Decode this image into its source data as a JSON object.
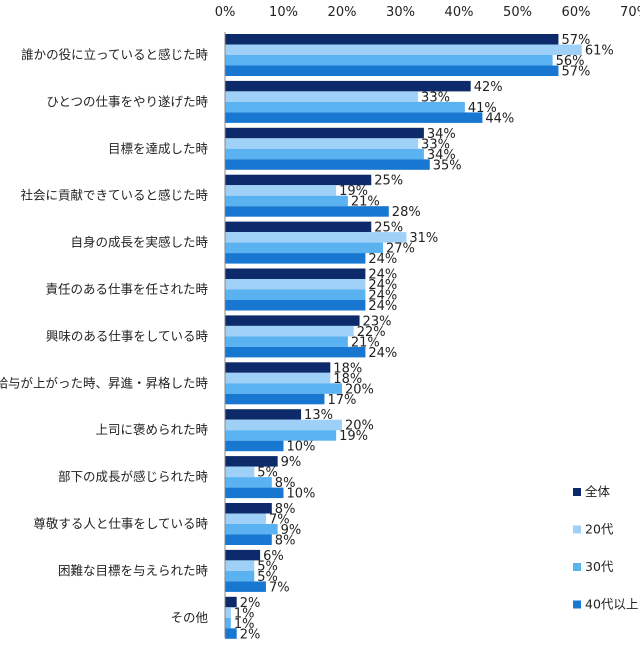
{
  "chart_data": {
    "type": "bar",
    "orientation": "horizontal",
    "title": "",
    "xlabel": "",
    "ylabel": "",
    "xlim": [
      0,
      70
    ],
    "x_ticks": [
      "0%",
      "10%",
      "20%",
      "30%",
      "40%",
      "50%",
      "60%",
      "70%"
    ],
    "value_suffix": "%",
    "grid": false,
    "legend_position": "bottom-right",
    "categories": [
      "誰かの役に立っていると感じた時",
      "ひとつの仕事をやり遂げた時",
      "目標を達成した時",
      "社会に貢献できていると感じた時",
      "自身の成長を実感した時",
      "責任のある仕事を任された時",
      "興味のある仕事をしている時",
      "給与が上がった時、昇進・昇格した時",
      "上司に褒められた時",
      "部下の成長が感じられた時",
      "尊敬する人と仕事をしている時",
      "困難な目標を与えられた時",
      "その他"
    ],
    "series": [
      {
        "name": "全体",
        "color": "#0d2b6b",
        "values": [
          57,
          42,
          34,
          25,
          25,
          24,
          23,
          18,
          13,
          9,
          8,
          6,
          2
        ]
      },
      {
        "name": "20代",
        "color": "#9fd0f7",
        "values": [
          61,
          33,
          33,
          19,
          31,
          24,
          22,
          18,
          20,
          5,
          7,
          5,
          1
        ]
      },
      {
        "name": "30代",
        "color": "#5ab2f0",
        "values": [
          56,
          41,
          34,
          21,
          27,
          24,
          21,
          20,
          19,
          8,
          9,
          5,
          1
        ]
      },
      {
        "name": "40代以上",
        "color": "#1777d1",
        "values": [
          57,
          44,
          35,
          28,
          24,
          24,
          24,
          17,
          10,
          10,
          8,
          7,
          2
        ]
      }
    ]
  }
}
